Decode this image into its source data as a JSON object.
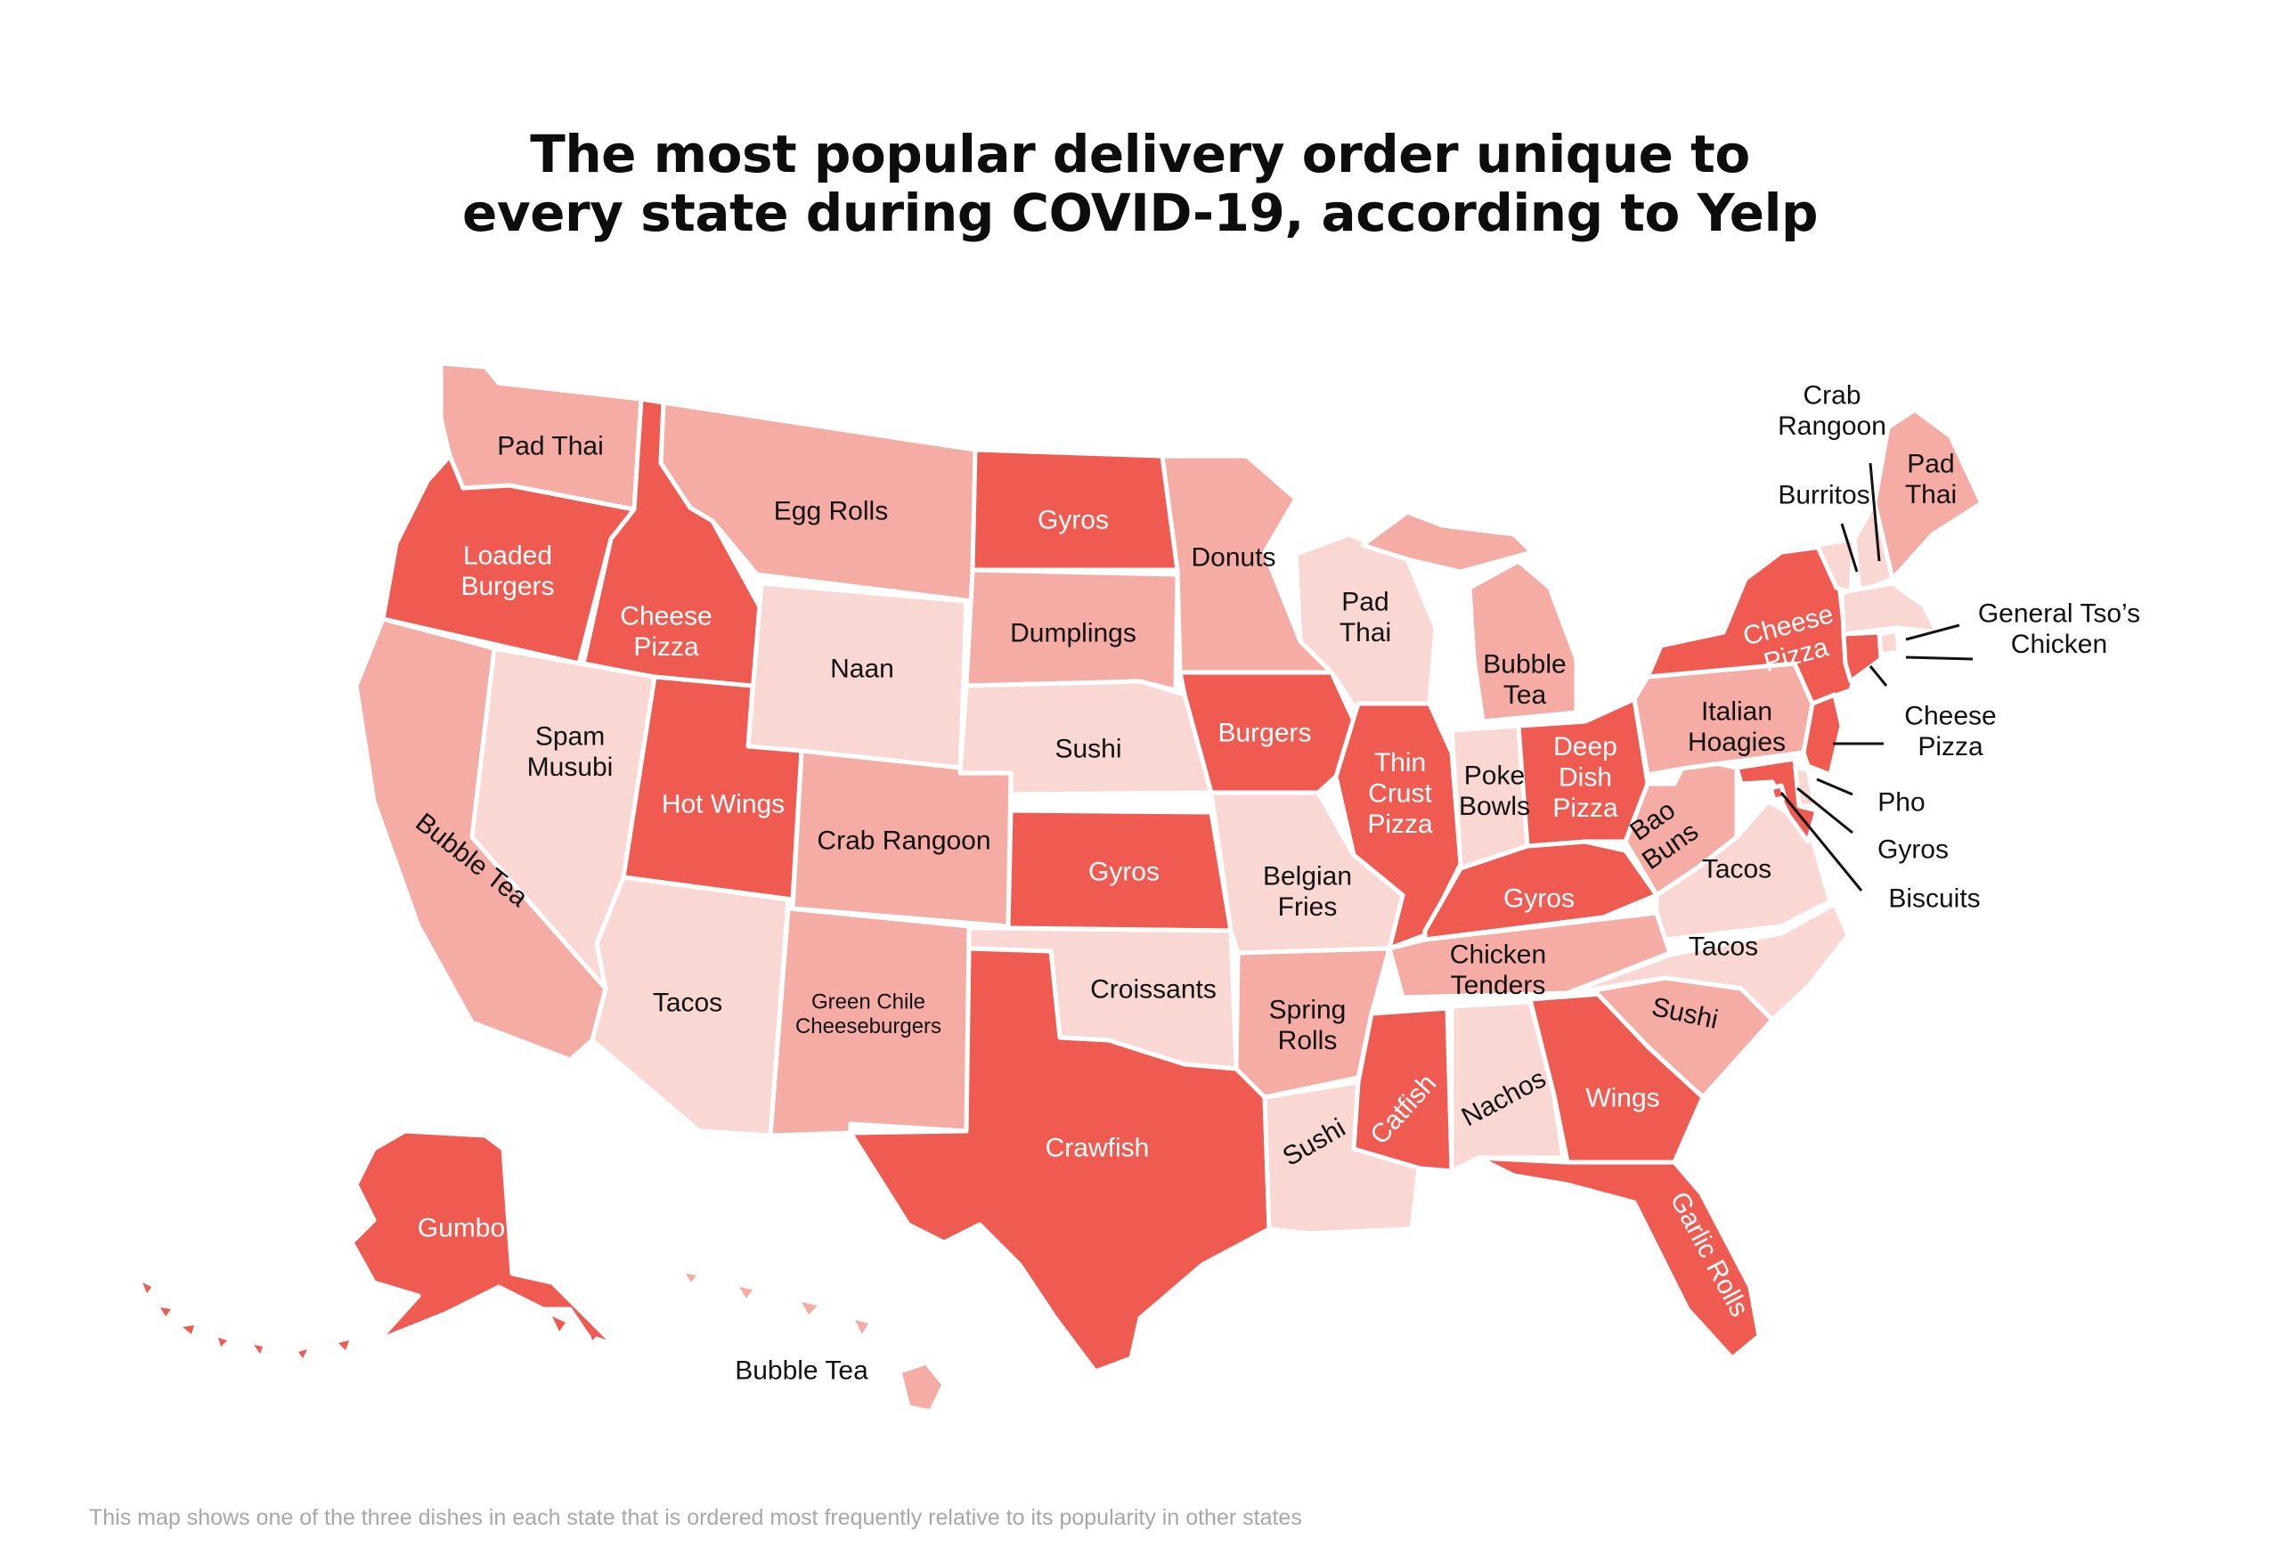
{
  "title": {
    "line1": "The most popular delivery order unique to",
    "line2": "every state during COVID-19, according to Yelp"
  },
  "footnote": "This map shows one of the three dishes in each state that is ordered most frequently relative to its popularity in other states",
  "colors": {
    "dark": "#ef5b51",
    "medium": "#f5aca5",
    "light": "#f9d7d3",
    "border": "#ffffff",
    "label_on_dark": "#ffffff",
    "label_on_light": "#111111"
  },
  "states": [
    {
      "id": "WA",
      "dish": "Pad Thai",
      "shade": "medium"
    },
    {
      "id": "OR",
      "dish": "Loaded Burgers",
      "shade": "dark"
    },
    {
      "id": "CA",
      "dish": "Bubble Tea",
      "shade": "medium"
    },
    {
      "id": "ID",
      "dish": "Cheese Pizza",
      "shade": "dark"
    },
    {
      "id": "NV",
      "dish": "Spam Musubi",
      "shade": "light"
    },
    {
      "id": "MT",
      "dish": "Egg Rolls",
      "shade": "medium"
    },
    {
      "id": "WY",
      "dish": "Naan",
      "shade": "light"
    },
    {
      "id": "UT",
      "dish": "Hot Wings",
      "shade": "dark"
    },
    {
      "id": "AZ",
      "dish": "Tacos",
      "shade": "light"
    },
    {
      "id": "CO",
      "dish": "Crab Rangoon",
      "shade": "medium"
    },
    {
      "id": "NM",
      "dish": "Green Chile Cheeseburgers",
      "shade": "medium"
    },
    {
      "id": "ND",
      "dish": "Gyros",
      "shade": "dark"
    },
    {
      "id": "SD",
      "dish": "Dumplings",
      "shade": "medium"
    },
    {
      "id": "NE",
      "dish": "Sushi",
      "shade": "light"
    },
    {
      "id": "KS",
      "dish": "Gyros",
      "shade": "dark"
    },
    {
      "id": "OK",
      "dish": "Croissants",
      "shade": "light"
    },
    {
      "id": "TX",
      "dish": "Crawfish",
      "shade": "dark"
    },
    {
      "id": "MN",
      "dish": "Donuts",
      "shade": "medium"
    },
    {
      "id": "IA",
      "dish": "Burgers",
      "shade": "dark"
    },
    {
      "id": "MO",
      "dish": "Belgian Fries",
      "shade": "light"
    },
    {
      "id": "AR",
      "dish": "Spring Rolls",
      "shade": "medium"
    },
    {
      "id": "LA",
      "dish": "Sushi",
      "shade": "light"
    },
    {
      "id": "WI",
      "dish": "Pad Thai",
      "shade": "light"
    },
    {
      "id": "IL",
      "dish": "Thin Crust Pizza",
      "shade": "dark"
    },
    {
      "id": "MI",
      "dish": "Bubble Tea",
      "shade": "medium"
    },
    {
      "id": "IN",
      "dish": "Poke Bowls",
      "shade": "light"
    },
    {
      "id": "OH",
      "dish": "Deep Dish Pizza",
      "shade": "dark"
    },
    {
      "id": "KY",
      "dish": "Gyros",
      "shade": "dark"
    },
    {
      "id": "TN",
      "dish": "Chicken Tenders",
      "shade": "medium"
    },
    {
      "id": "MS",
      "dish": "Catfish",
      "shade": "dark"
    },
    {
      "id": "AL",
      "dish": "Nachos",
      "shade": "light"
    },
    {
      "id": "GA",
      "dish": "Wings",
      "shade": "dark"
    },
    {
      "id": "FL",
      "dish": "Garlic Rolls",
      "shade": "dark"
    },
    {
      "id": "SC",
      "dish": "Sushi",
      "shade": "medium"
    },
    {
      "id": "NC",
      "dish": "Tacos",
      "shade": "light"
    },
    {
      "id": "VA",
      "dish": "Tacos",
      "shade": "light"
    },
    {
      "id": "WV",
      "dish": "Bao Buns",
      "shade": "medium"
    },
    {
      "id": "PA",
      "dish": "Italian Hoagies",
      "shade": "medium"
    },
    {
      "id": "NY",
      "dish": "Cheese Pizza",
      "shade": "dark"
    },
    {
      "id": "VT",
      "dish": "Burritos",
      "shade": "light"
    },
    {
      "id": "NH",
      "dish": "Crab Rangoon",
      "shade": "light"
    },
    {
      "id": "ME",
      "dish": "Pad Thai",
      "shade": "medium"
    },
    {
      "id": "MA",
      "dish": "General Tso’s Chicken",
      "shade": "light"
    },
    {
      "id": "RI",
      "dish": "General Tso’s Chicken",
      "shade": "light"
    },
    {
      "id": "CT",
      "dish": "Cheese Pizza",
      "shade": "dark"
    },
    {
      "id": "NJ",
      "dish": "Cheese Pizza",
      "shade": "dark"
    },
    {
      "id": "DE",
      "dish": "Pho",
      "shade": "light"
    },
    {
      "id": "MD",
      "dish": "Gyros",
      "shade": "dark"
    },
    {
      "id": "DC",
      "dish": "Biscuits",
      "shade": "dark"
    },
    {
      "id": "AK",
      "dish": "Gumbo",
      "shade": "dark"
    },
    {
      "id": "HI",
      "dish": "Bubble Tea",
      "shade": "medium"
    }
  ]
}
